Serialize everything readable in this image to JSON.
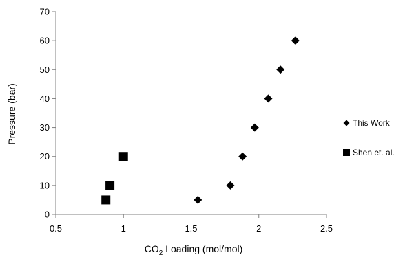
{
  "chart_data": {
    "type": "scatter",
    "xlabel_prefix": "CO",
    "xlabel_subscript": "2",
    "xlabel_suffix": " Loading (mol/mol)",
    "ylabel": "Pressure  (bar)",
    "xlim": [
      0.5,
      2.5
    ],
    "ylim": [
      0,
      70
    ],
    "x_ticks": [
      0.5,
      1,
      1.5,
      2,
      2.5
    ],
    "x_tick_labels": [
      "0.5",
      "1",
      "1.5",
      "2",
      "2.5"
    ],
    "y_ticks": [
      0,
      10,
      20,
      30,
      40,
      50,
      60,
      70
    ],
    "y_tick_labels": [
      "0",
      "10",
      "20",
      "30",
      "40",
      "50",
      "60",
      "70"
    ],
    "grid": false,
    "legend_position": "right",
    "series": [
      {
        "name": "This Work",
        "marker": "diamond",
        "color": "#000000",
        "points": [
          {
            "x": 1.55,
            "y": 5
          },
          {
            "x": 1.79,
            "y": 10
          },
          {
            "x": 1.88,
            "y": 20
          },
          {
            "x": 1.97,
            "y": 30
          },
          {
            "x": 2.07,
            "y": 40
          },
          {
            "x": 2.16,
            "y": 50
          },
          {
            "x": 2.27,
            "y": 60
          }
        ]
      },
      {
        "name": "Shen et. al.",
        "marker": "square",
        "color": "#000000",
        "points": [
          {
            "x": 0.87,
            "y": 5
          },
          {
            "x": 0.9,
            "y": 10
          },
          {
            "x": 1.0,
            "y": 20
          }
        ]
      }
    ]
  }
}
